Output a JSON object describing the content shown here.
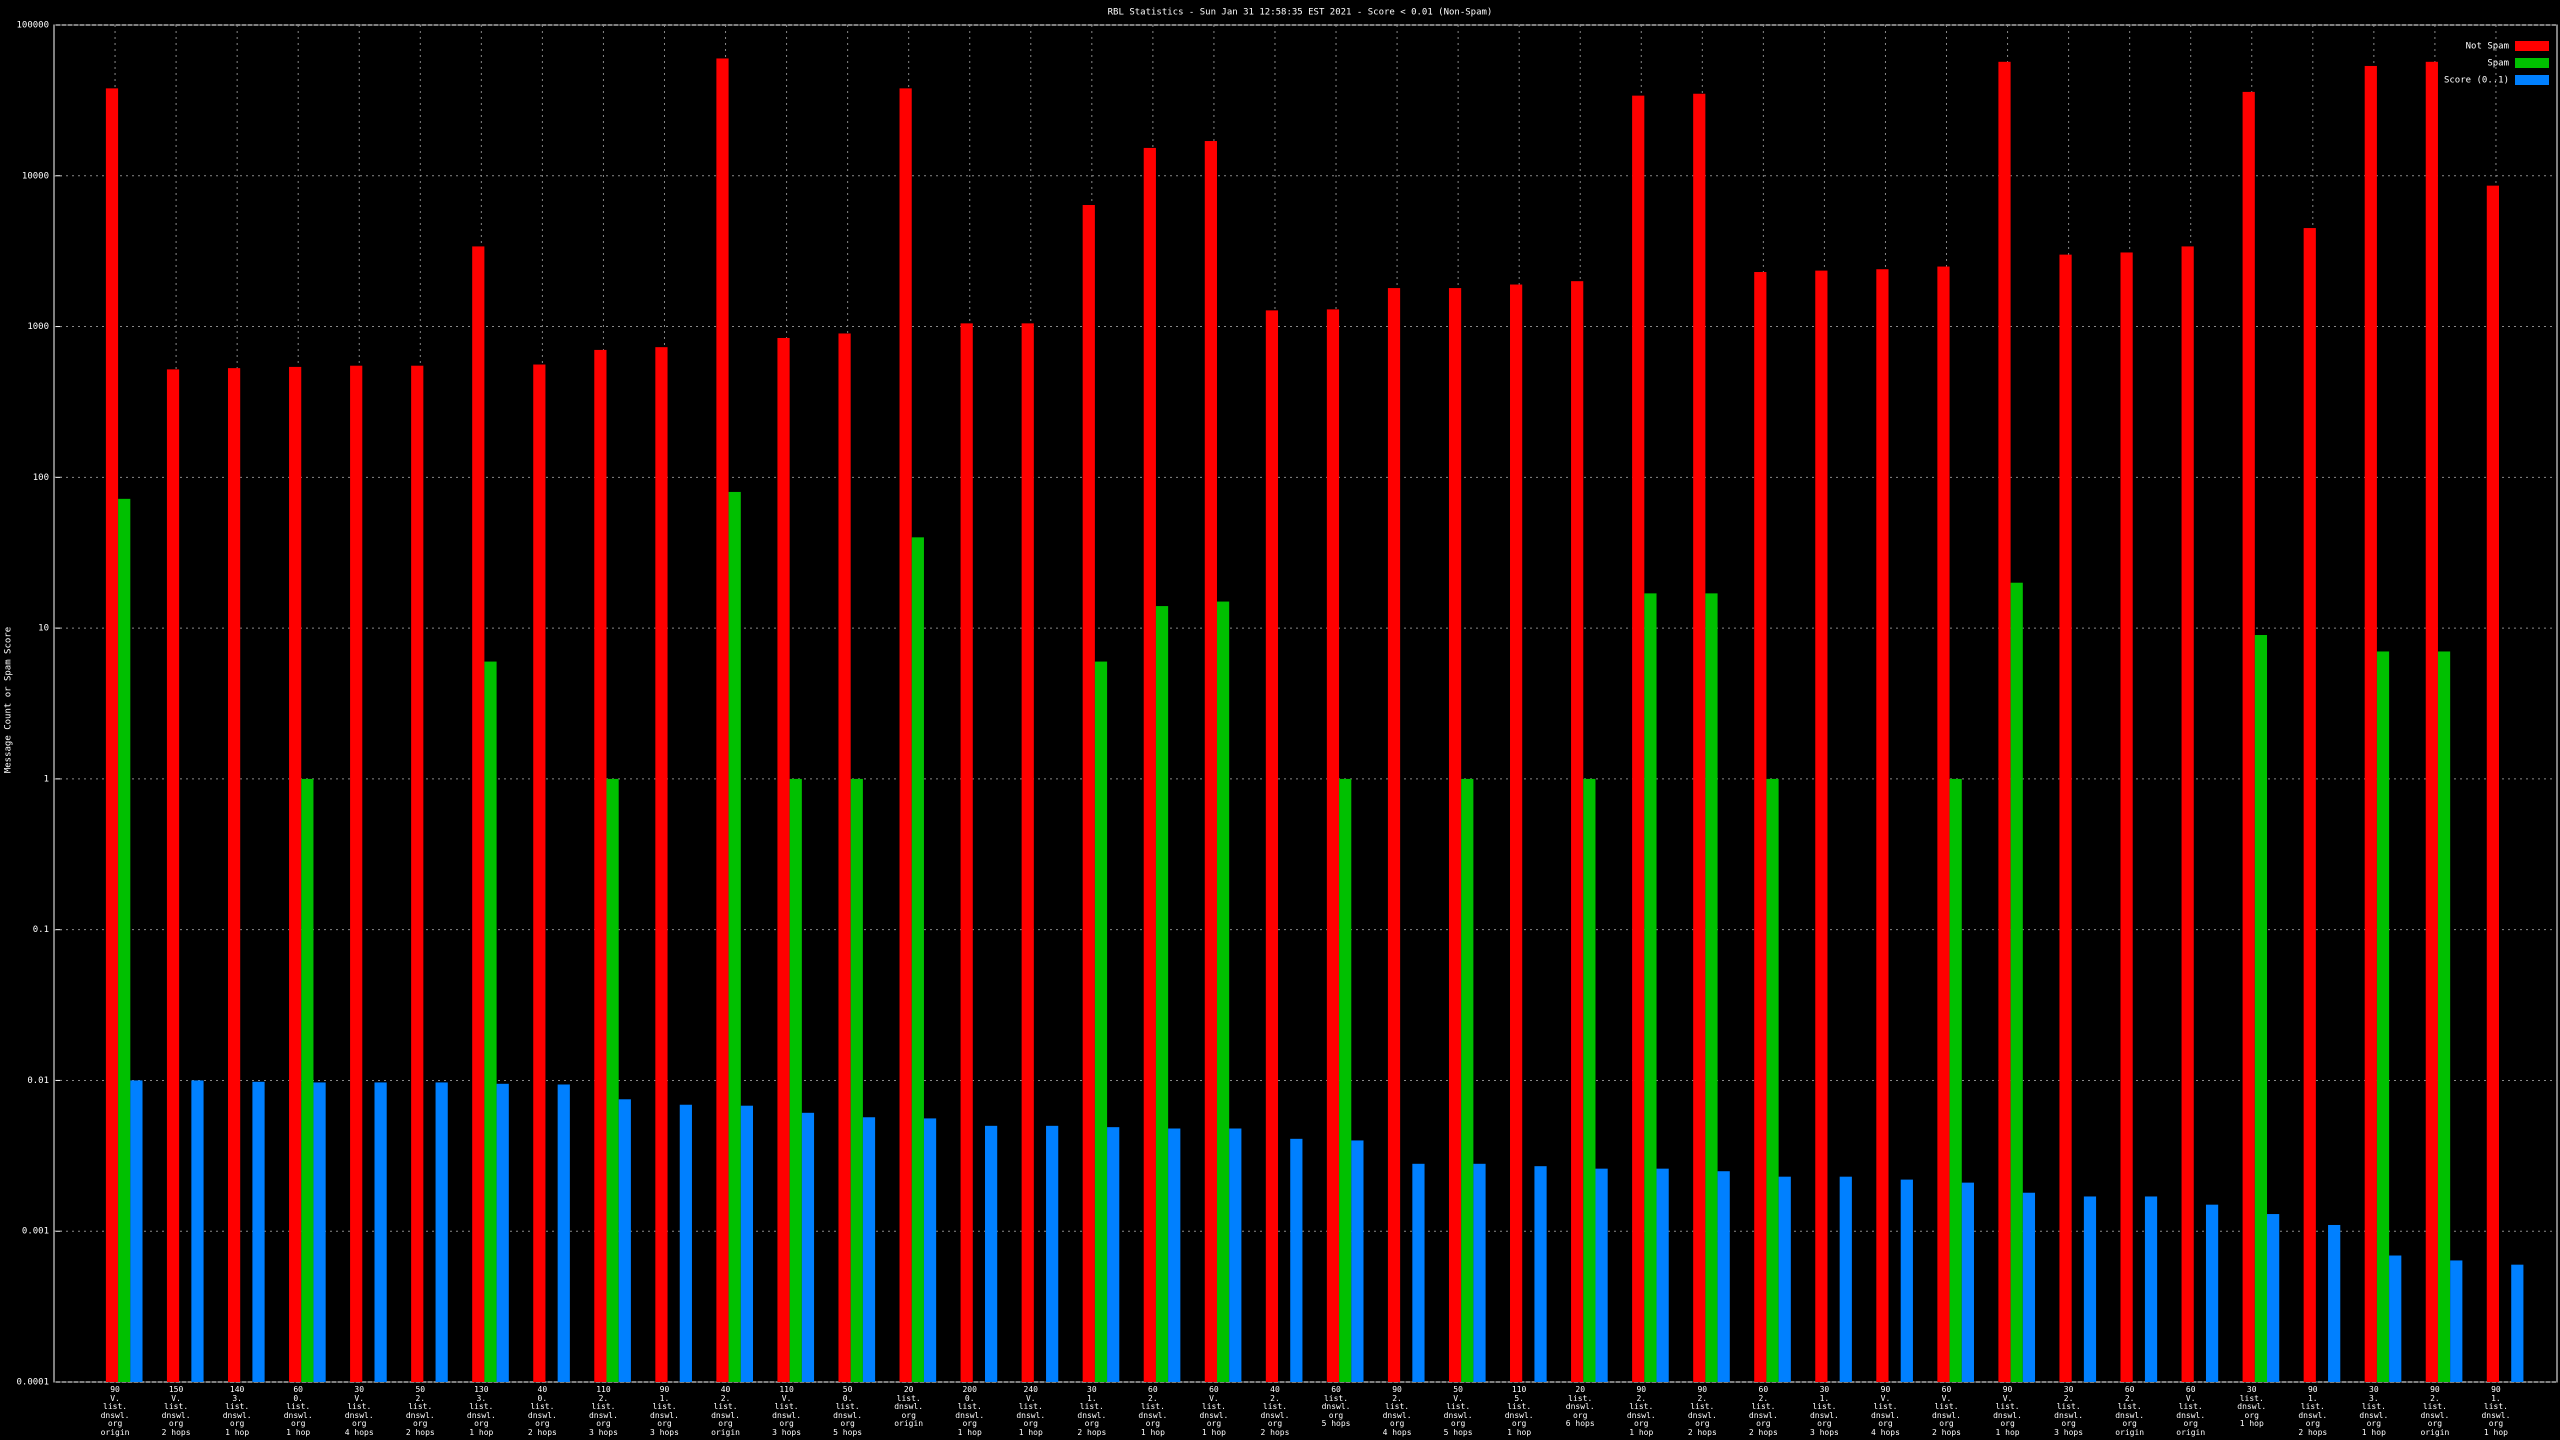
{
  "chart_data": {
    "type": "bar",
    "title": "RBL Statistics - Sun Jan 31 12:58:35 EST 2021 - Score < 0.01 (Non-Spam)",
    "y_label": "Message Count or Spam Score",
    "log_scale": true,
    "grid": true,
    "legend": "top-right",
    "ylim": [
      0.0001,
      100000
    ],
    "yticks": [
      0.0001,
      0.001,
      0.01,
      0.1,
      1,
      10,
      100,
      1000,
      10000,
      100000
    ],
    "categories": [
      "90\nV.\nlist.\ndnswl.\norg\norigin",
      "150\nV.\nlist.\ndnswl.\norg\n2 hops",
      "140\n3.\nlist.\ndnswl.\norg\n1 hop",
      "60\n0.\nlist.\ndnswl.\norg\n1 hop",
      "30\nV.\nlist.\ndnswl.\norg\n4 hops",
      "50\n2.\nlist.\ndnswl.\norg\n2 hops",
      "130\n3.\nlist.\ndnswl.\norg\n1 hop",
      "40\n0.\nlist.\ndnswl.\norg\n2 hops",
      "110\n2.\nlist.\ndnswl.\norg\n3 hops",
      "90\n1.\nlist.\ndnswl.\norg\n3 hops",
      "40\n2.\nlist.\ndnswl.\norg\norigin",
      "110\nV.\nlist.\ndnswl.\norg\n3 hops",
      "50\n0.\nlist.\ndnswl.\norg\n5 hops",
      "20\nlist.\ndnswl.\norg\norigin",
      "200\n0.\nlist.\ndnswl.\norg\n1 hop",
      "240\nV.\nlist.\ndnswl.\norg\n1 hop",
      "30\n1.\nlist.\ndnswl.\norg\n2 hops",
      "60\n2.\nlist.\ndnswl.\norg\n1 hop",
      "60\nV.\nlist.\ndnswl.\norg\n1 hop",
      "40\n2.\nlist.\ndnswl.\norg\n2 hops",
      "60\nlist.\ndnswl.\norg\n5 hops",
      "90\n2.\nlist.\ndnswl.\norg\n4 hops",
      "50\nV.\nlist.\ndnswl.\norg\n5 hops",
      "110\n5.\nlist.\ndnswl.\norg\n1 hop",
      "20\nlist.\ndnswl.\norg\n6 hops",
      "90\n2.\nlist.\ndnswl.\norg\n1 hop",
      "90\n2.\nlist.\ndnswl.\norg\n2 hops",
      "60\n2.\nlist.\ndnswl.\norg\n2 hops",
      "30\n1.\nlist.\ndnswl.\norg\n3 hops",
      "90\nV.\nlist.\ndnswl.\norg\n4 hops",
      "60\nV.\nlist.\ndnswl.\norg\n2 hops",
      "90\nV.\nlist.\ndnswl.\norg\n1 hop",
      "30\n2.\nlist.\ndnswl.\norg\n3 hops",
      "60\n2.\nlist.\ndnswl.\norg\norigin",
      "60\nV.\nlist.\ndnswl.\norg\norigin",
      "30\nlist.\ndnswl.\norg\n1 hop",
      "90\n1.\nlist.\ndnswl.\norg\n2 hops",
      "30\n3.\nlist.\ndnswl.\norg\n1 hop",
      "90\n2.\nlist.\ndnswl.\norg\norigin",
      "90\n1.\nlist.\ndnswl.\norg\n1 hop"
    ],
    "series": [
      {
        "name": "Not Spam",
        "color": "#ff0000",
        "values": [
          38000,
          520,
          530,
          540,
          550,
          550,
          3400,
          560,
          700,
          730,
          60000,
          840,
          900,
          38000,
          1050,
          1050,
          6400,
          15300,
          17000,
          1280,
          1300,
          1800,
          1800,
          1900,
          2000,
          34000,
          35000,
          2300,
          2350,
          2400,
          2500,
          57000,
          3000,
          3100,
          3400,
          36000,
          4500,
          53500,
          57000,
          8600
        ]
      },
      {
        "name": "Spam",
        "color": "#00c000",
        "values": [
          72,
          null,
          null,
          1,
          null,
          null,
          6,
          null,
          1,
          null,
          80,
          1,
          1,
          40,
          null,
          null,
          6,
          14,
          15,
          null,
          1,
          null,
          1,
          null,
          1,
          17,
          17,
          1,
          null,
          null,
          1,
          20,
          null,
          null,
          null,
          9,
          null,
          7,
          7,
          null
        ]
      },
      {
        "name": "Score (0..1)",
        "color": "#0080ff",
        "values": [
          0.01,
          0.01,
          0.0098,
          0.0097,
          0.0097,
          0.0097,
          0.0095,
          0.0094,
          0.0075,
          0.0069,
          0.0068,
          0.0061,
          0.0057,
          0.0056,
          0.005,
          0.005,
          0.0049,
          0.0048,
          0.0048,
          0.0041,
          0.004,
          0.0028,
          0.0028,
          0.0027,
          0.0026,
          0.0026,
          0.0025,
          0.0023,
          0.0023,
          0.0022,
          0.0021,
          0.0018,
          0.0017,
          0.0017,
          0.0015,
          0.0013,
          0.0011,
          0.00069,
          0.00064,
          0.0006
        ]
      }
    ]
  }
}
